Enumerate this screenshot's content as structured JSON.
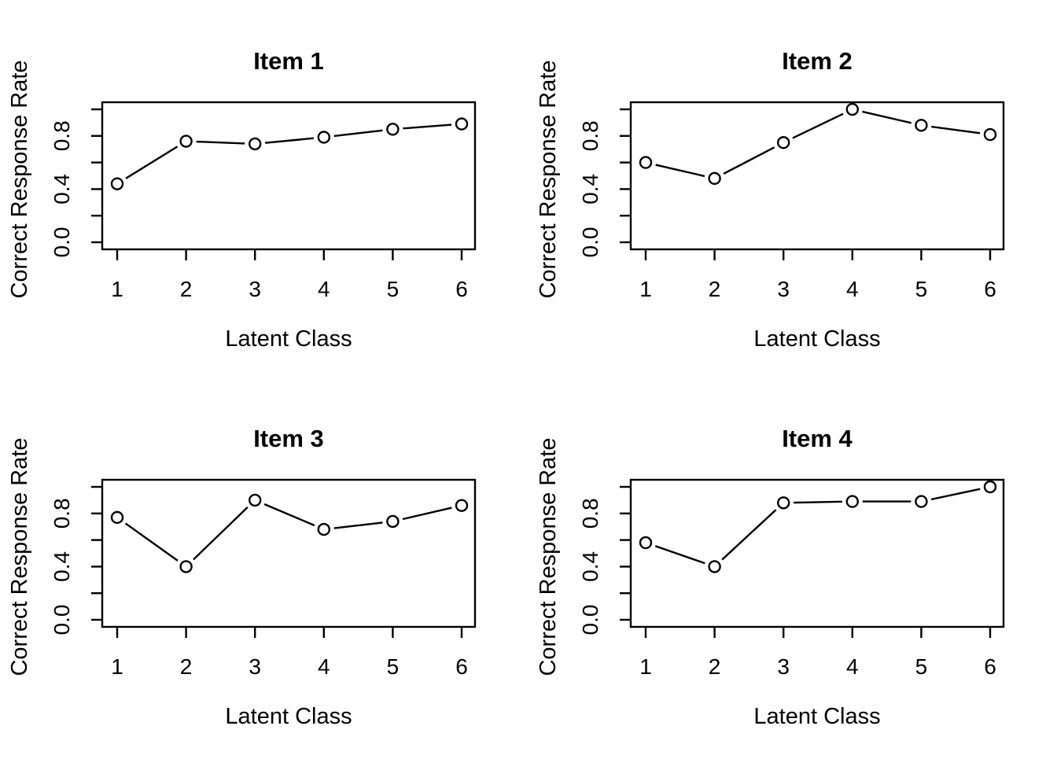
{
  "page": {
    "background": "#ffffff",
    "foreground": "#000000"
  },
  "chart_data": [
    {
      "type": "line",
      "title": "Item 1",
      "xlabel": "Latent Class",
      "ylabel": "Correct Response Rate",
      "x": [
        1,
        2,
        3,
        4,
        5,
        6
      ],
      "y": [
        0.44,
        0.76,
        0.74,
        0.79,
        0.85,
        0.89
      ],
      "marker": "open-circle",
      "line_color": "#000000",
      "marker_fill": "#ffffff",
      "xticks": [
        1,
        2,
        3,
        4,
        5,
        6
      ],
      "yticks": [
        0.0,
        0.2,
        0.4,
        0.6,
        0.8,
        1.0
      ],
      "ytick_labeled": [
        0.0,
        0.4,
        0.8
      ],
      "xlim": [
        0.8,
        6.2
      ],
      "ylim": [
        -0.05,
        1.05
      ],
      "grid": false,
      "legend": null
    },
    {
      "type": "line",
      "title": "Item 2",
      "xlabel": "Latent Class",
      "ylabel": "Correct Response Rate",
      "x": [
        1,
        2,
        3,
        4,
        5,
        6
      ],
      "y": [
        0.6,
        0.48,
        0.75,
        1.0,
        0.88,
        0.81
      ],
      "marker": "open-circle",
      "line_color": "#000000",
      "marker_fill": "#ffffff",
      "xticks": [
        1,
        2,
        3,
        4,
        5,
        6
      ],
      "yticks": [
        0.0,
        0.2,
        0.4,
        0.6,
        0.8,
        1.0
      ],
      "ytick_labeled": [
        0.0,
        0.4,
        0.8
      ],
      "xlim": [
        0.8,
        6.2
      ],
      "ylim": [
        -0.05,
        1.05
      ],
      "grid": false,
      "legend": null
    },
    {
      "type": "line",
      "title": "Item 3",
      "xlabel": "Latent Class",
      "ylabel": "Correct Response Rate",
      "x": [
        1,
        2,
        3,
        4,
        5,
        6
      ],
      "y": [
        0.77,
        0.4,
        0.9,
        0.68,
        0.74,
        0.86
      ],
      "marker": "open-circle",
      "line_color": "#000000",
      "marker_fill": "#ffffff",
      "xticks": [
        1,
        2,
        3,
        4,
        5,
        6
      ],
      "yticks": [
        0.0,
        0.2,
        0.4,
        0.6,
        0.8,
        1.0
      ],
      "ytick_labeled": [
        0.0,
        0.4,
        0.8
      ],
      "xlim": [
        0.8,
        6.2
      ],
      "ylim": [
        -0.05,
        1.05
      ],
      "grid": false,
      "legend": null
    },
    {
      "type": "line",
      "title": "Item 4",
      "xlabel": "Latent Class",
      "ylabel": "Correct Response Rate",
      "x": [
        1,
        2,
        3,
        4,
        5,
        6
      ],
      "y": [
        0.58,
        0.4,
        0.88,
        0.89,
        0.89,
        1.0
      ],
      "marker": "open-circle",
      "line_color": "#000000",
      "marker_fill": "#ffffff",
      "xticks": [
        1,
        2,
        3,
        4,
        5,
        6
      ],
      "yticks": [
        0.0,
        0.2,
        0.4,
        0.6,
        0.8,
        1.0
      ],
      "ytick_labeled": [
        0.0,
        0.4,
        0.8
      ],
      "xlim": [
        0.8,
        6.2
      ],
      "ylim": [
        -0.05,
        1.05
      ],
      "grid": false,
      "legend": null
    }
  ]
}
